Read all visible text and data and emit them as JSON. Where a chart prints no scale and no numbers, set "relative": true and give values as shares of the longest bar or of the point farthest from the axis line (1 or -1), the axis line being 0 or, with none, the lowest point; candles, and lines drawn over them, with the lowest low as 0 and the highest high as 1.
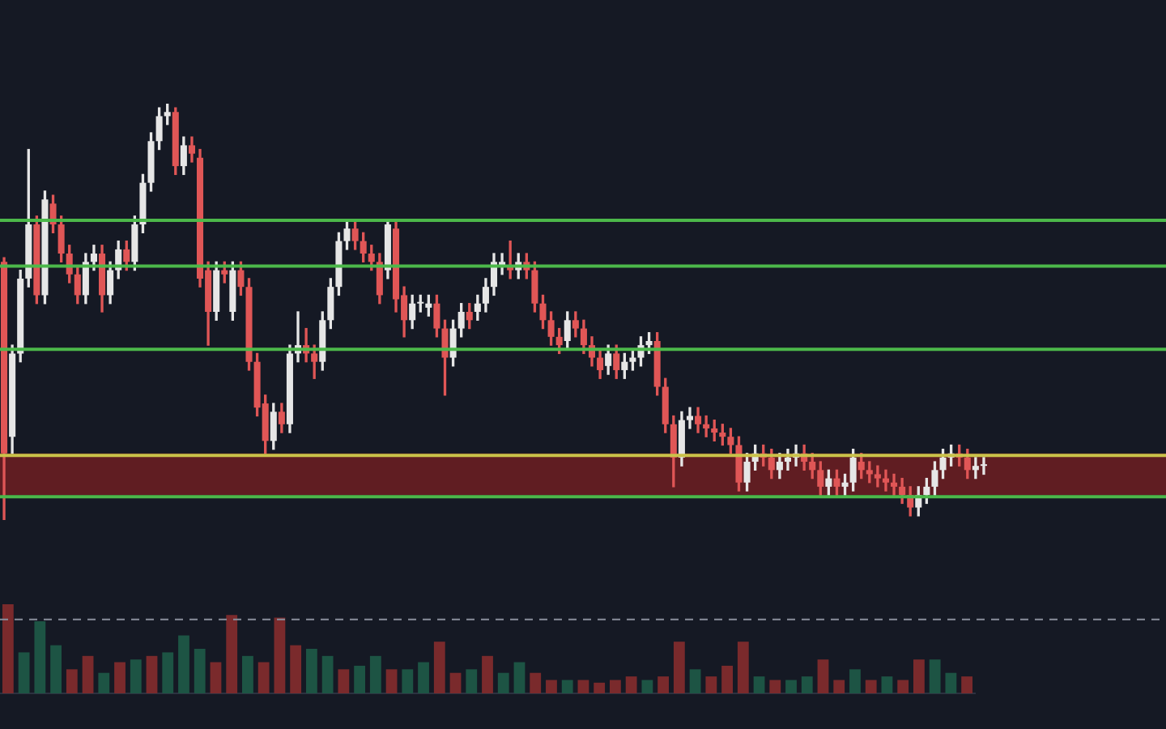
{
  "chart_data": [
    {
      "type": "candlestick",
      "relative": true,
      "categories": [
        null,
        null,
        null,
        null,
        null,
        null,
        null,
        null,
        null,
        null,
        null,
        null,
        null,
        null,
        null,
        null,
        null,
        null,
        null,
        null,
        null,
        null,
        null,
        null,
        null,
        null,
        null,
        null,
        null,
        null,
        null,
        null,
        null,
        null,
        null,
        null,
        null,
        null,
        null,
        null,
        null,
        null,
        null,
        null,
        null,
        null,
        null,
        null,
        null,
        null,
        null,
        null,
        null,
        null,
        null,
        null,
        null,
        null,
        null,
        null,
        null,
        null,
        null,
        null,
        null,
        null,
        null,
        null,
        null,
        null,
        null,
        null,
        null,
        null,
        null,
        null,
        null,
        null,
        null,
        null,
        null,
        null,
        null,
        null,
        null,
        null,
        null,
        null,
        null,
        null,
        null,
        null,
        null,
        null,
        null,
        null,
        null,
        null,
        null,
        null,
        null,
        null,
        null,
        null,
        null,
        null,
        null,
        null,
        null,
        null,
        null,
        null,
        null,
        null,
        null,
        null,
        null,
        null,
        null,
        null,
        null
      ],
      "ohlc": [
        [
          0.62,
          0.63,
          0,
          0.16
        ],
        [
          0.2,
          0.42,
          0.16,
          0.4
        ],
        [
          0.4,
          0.6,
          0.38,
          0.58
        ],
        [
          0.58,
          0.89,
          0.56,
          0.71
        ],
        [
          0.71,
          0.73,
          0.52,
          0.54
        ],
        [
          0.54,
          0.79,
          0.52,
          0.77
        ],
        [
          0.76,
          0.78,
          0.69,
          0.71
        ],
        [
          0.71,
          0.73,
          0.62,
          0.64
        ],
        [
          0.64,
          0.66,
          0.57,
          0.59
        ],
        [
          0.59,
          0.61,
          0.52,
          0.54
        ],
        [
          0.54,
          0.64,
          0.52,
          0.62
        ],
        [
          0.62,
          0.66,
          0.6,
          0.64
        ],
        [
          0.64,
          0.66,
          0.5,
          0.54
        ],
        [
          0.54,
          0.62,
          0.52,
          0.6
        ],
        [
          0.6,
          0.67,
          0.58,
          0.65
        ],
        [
          0.65,
          0.67,
          0.6,
          0.62
        ],
        [
          0.62,
          0.73,
          0.6,
          0.71
        ],
        [
          0.71,
          0.83,
          0.69,
          0.81
        ],
        [
          0.81,
          0.93,
          0.79,
          0.91
        ],
        [
          0.91,
          0.99,
          0.89,
          0.97
        ],
        [
          0.97,
          1,
          0.95,
          0.98
        ],
        [
          0.98,
          0.99,
          0.83,
          0.85
        ],
        [
          0.85,
          0.92,
          0.83,
          0.9
        ],
        [
          0.9,
          0.92,
          0.86,
          0.88
        ],
        [
          0.87,
          0.89,
          0.56,
          0.58
        ],
        [
          0.6,
          0.62,
          0.42,
          0.5
        ],
        [
          0.5,
          0.62,
          0.48,
          0.6
        ],
        [
          0.6,
          0.62,
          0.57,
          0.59
        ],
        [
          0.5,
          0.62,
          0.48,
          0.6
        ],
        [
          0.6,
          0.62,
          0.54,
          0.56
        ],
        [
          0.56,
          0.58,
          0.36,
          0.38
        ],
        [
          0.38,
          0.4,
          0.25,
          0.27
        ],
        [
          0.28,
          0.3,
          0.16,
          0.19
        ],
        [
          0.19,
          0.28,
          0.17,
          0.26
        ],
        [
          0.26,
          0.28,
          0.21,
          0.23
        ],
        [
          0.23,
          0.42,
          0.21,
          0.4
        ],
        [
          0.4,
          0.5,
          0.38,
          0.42
        ],
        [
          0.42,
          0.46,
          0.38,
          0.4
        ],
        [
          0.4,
          0.42,
          0.34,
          0.38
        ],
        [
          0.38,
          0.5,
          0.36,
          0.48
        ],
        [
          0.48,
          0.58,
          0.46,
          0.56
        ],
        [
          0.56,
          0.69,
          0.54,
          0.67
        ],
        [
          0.67,
          0.72,
          0.65,
          0.7
        ],
        [
          0.7,
          0.72,
          0.65,
          0.67
        ],
        [
          0.67,
          0.69,
          0.62,
          0.64
        ],
        [
          0.64,
          0.66,
          0.6,
          0.62
        ],
        [
          0.62,
          0.64,
          0.52,
          0.54
        ],
        [
          0.6,
          0.72,
          0.58,
          0.71
        ],
        [
          0.7,
          0.72,
          0.5,
          0.53
        ],
        [
          0.54,
          0.56,
          0.44,
          0.48
        ],
        [
          0.48,
          0.54,
          0.46,
          0.52
        ],
        [
          0.52,
          0.54,
          0.5,
          0.52
        ],
        [
          0.51,
          0.54,
          0.49,
          0.52
        ],
        [
          0.52,
          0.54,
          0.44,
          0.46
        ],
        [
          0.46,
          0.48,
          0.3,
          0.39
        ],
        [
          0.39,
          0.48,
          0.37,
          0.46
        ],
        [
          0.46,
          0.52,
          0.44,
          0.5
        ],
        [
          0.5,
          0.52,
          0.46,
          0.48
        ],
        [
          0.5,
          0.54,
          0.48,
          0.52
        ],
        [
          0.52,
          0.58,
          0.5,
          0.56
        ],
        [
          0.56,
          0.64,
          0.54,
          0.62
        ],
        [
          0.61,
          0.64,
          0.59,
          0.62
        ],
        [
          0.61,
          0.67,
          0.58,
          0.6
        ],
        [
          0.6,
          0.64,
          0.58,
          0.62
        ],
        [
          0.62,
          0.64,
          0.58,
          0.6
        ],
        [
          0.6,
          0.62,
          0.5,
          0.52
        ],
        [
          0.52,
          0.54,
          0.46,
          0.48
        ],
        [
          0.48,
          0.5,
          0.42,
          0.44
        ],
        [
          0.44,
          0.46,
          0.4,
          0.42
        ],
        [
          0.43,
          0.5,
          0.41,
          0.48
        ],
        [
          0.48,
          0.5,
          0.44,
          0.46
        ],
        [
          0.46,
          0.48,
          0.4,
          0.42
        ],
        [
          0.42,
          0.44,
          0.37,
          0.39
        ],
        [
          0.39,
          0.41,
          0.34,
          0.36
        ],
        [
          0.37,
          0.42,
          0.35,
          0.4
        ],
        [
          0.4,
          0.42,
          0.34,
          0.36
        ],
        [
          0.36,
          0.4,
          0.34,
          0.38
        ],
        [
          0.38,
          0.41,
          0.36,
          0.39
        ],
        [
          0.39,
          0.44,
          0.37,
          0.42
        ],
        [
          0.42,
          0.45,
          0.4,
          0.43
        ],
        [
          0.43,
          0.45,
          0.3,
          0.32
        ],
        [
          0.32,
          0.34,
          0.21,
          0.23
        ],
        [
          0.23,
          0.25,
          0.08,
          0.15
        ],
        [
          0.15,
          0.26,
          0.13,
          0.24
        ],
        [
          0.24,
          0.27,
          0.22,
          0.25
        ],
        [
          0.25,
          0.27,
          0.21,
          0.23
        ],
        [
          0.23,
          0.25,
          0.2,
          0.22
        ],
        [
          0.22,
          0.24,
          0.19,
          0.21
        ],
        [
          0.21,
          0.23,
          0.18,
          0.2
        ],
        [
          0.2,
          0.22,
          0.16,
          0.18
        ],
        [
          0.18,
          0.2,
          0.07,
          0.09
        ],
        [
          0.09,
          0.16,
          0.07,
          0.14
        ],
        [
          0.14,
          0.18,
          0.12,
          0.16
        ],
        [
          0.16,
          0.18,
          0.13,
          0.15
        ],
        [
          0.15,
          0.17,
          0.1,
          0.12
        ],
        [
          0.12,
          0.16,
          0.1,
          0.14
        ],
        [
          0.14,
          0.17,
          0.12,
          0.15
        ],
        [
          0.15,
          0.18,
          0.13,
          0.16
        ],
        [
          0.16,
          0.18,
          0.12,
          0.14
        ],
        [
          0.14,
          0.16,
          0.1,
          0.12
        ],
        [
          0.12,
          0.14,
          0.06,
          0.08
        ],
        [
          0.08,
          0.12,
          0.06,
          0.1
        ],
        [
          0.1,
          0.12,
          0.06,
          0.08
        ],
        [
          0.08,
          0.11,
          0.06,
          0.09
        ],
        [
          0.09,
          0.17,
          0.07,
          0.15
        ],
        [
          0.14,
          0.16,
          0.1,
          0.12
        ],
        [
          0.12,
          0.14,
          0.09,
          0.11
        ],
        [
          0.11,
          0.13,
          0.08,
          0.1
        ],
        [
          0.1,
          0.12,
          0.07,
          0.09
        ],
        [
          0.09,
          0.11,
          0.06,
          0.08
        ],
        [
          0.08,
          0.1,
          0.04,
          0.06
        ],
        [
          0.06,
          0.08,
          0.01,
          0.03
        ],
        [
          0.03,
          0.08,
          0.01,
          0.06
        ],
        [
          0.06,
          0.1,
          0.04,
          0.08
        ],
        [
          0.08,
          0.14,
          0.06,
          0.12
        ],
        [
          0.12,
          0.17,
          0.1,
          0.15
        ],
        [
          0.15,
          0.18,
          0.13,
          0.16
        ],
        [
          0.16,
          0.18,
          0.13,
          0.15
        ],
        [
          0.15,
          0.17,
          0.1,
          0.12
        ],
        [
          0.12,
          0.15,
          0.1,
          0.13
        ],
        [
          0.13,
          0.15,
          0.11,
          0.13
        ]
      ],
      "colors": [
        "#e05656",
        "#e6e6e6",
        "#e6e6e6",
        "#e6e6e6",
        "#e05656",
        "#e6e6e6",
        "#e05656",
        "#e05656",
        "#e05656",
        "#e05656",
        "#e6e6e6",
        "#e6e6e6",
        "#e05656",
        "#e6e6e6",
        "#e6e6e6",
        "#e05656",
        "#e6e6e6",
        "#e6e6e6",
        "#e6e6e6",
        "#e6e6e6",
        "#e6e6e6",
        "#e05656",
        "#e6e6e6",
        "#e05656",
        "#e05656",
        "#e05656",
        "#e6e6e6",
        "#e05656",
        "#e6e6e6",
        "#e05656",
        "#e05656",
        "#e05656",
        "#e05656",
        "#e6e6e6",
        "#e05656",
        "#e6e6e6",
        "#e6e6e6",
        "#e05656",
        "#e05656",
        "#e6e6e6",
        "#e6e6e6",
        "#e6e6e6",
        "#e6e6e6",
        "#e05656",
        "#e05656",
        "#e05656",
        "#e05656",
        "#e6e6e6",
        "#e05656",
        "#e05656",
        "#e6e6e6",
        "#e6e6e6",
        "#e6e6e6",
        "#e05656",
        "#e05656",
        "#e6e6e6",
        "#e6e6e6",
        "#e05656",
        "#e6e6e6",
        "#e6e6e6",
        "#e6e6e6",
        "#e6e6e6",
        "#e05656",
        "#e6e6e6",
        "#e05656",
        "#e05656",
        "#e05656",
        "#e05656",
        "#e05656",
        "#e6e6e6",
        "#e05656",
        "#e05656",
        "#e05656",
        "#e05656",
        "#e6e6e6",
        "#e05656",
        "#e6e6e6",
        "#e6e6e6",
        "#e6e6e6",
        "#e6e6e6",
        "#e05656",
        "#e05656",
        "#e05656",
        "#e6e6e6",
        "#e6e6e6",
        "#e05656",
        "#e05656",
        "#e05656",
        "#e05656",
        "#e05656",
        "#e05656",
        "#e6e6e6",
        "#e6e6e6",
        "#e05656",
        "#e05656",
        "#e6e6e6",
        "#e6e6e6",
        "#e6e6e6",
        "#e05656",
        "#e05656",
        "#e05656",
        "#e6e6e6",
        "#e05656",
        "#e6e6e6",
        "#e6e6e6",
        "#e05656",
        "#e05656",
        "#e05656",
        "#e05656",
        "#e05656",
        "#e05656",
        "#e05656",
        "#e6e6e6",
        "#e6e6e6",
        "#e6e6e6",
        "#e6e6e6",
        "#e6e6e6",
        "#e05656",
        "#e05656",
        "#e6e6e6",
        "#e6e6e6"
      ],
      "bands": [
        {
          "axis": "y",
          "from": 0.06,
          "to": 0.16,
          "color": "#7a1f22"
        }
      ],
      "ref_lines": [
        {
          "axis": "y",
          "value": 0.72,
          "color": "#4cb84a"
        },
        {
          "axis": "y",
          "value": 0.61,
          "color": "#4cb84a"
        },
        {
          "axis": "y",
          "value": 0.41,
          "color": "#4cb84a"
        },
        {
          "axis": "y",
          "value": 0.155,
          "color": "#c9c24a"
        },
        {
          "axis": "y",
          "value": 0.056,
          "color": "#4cb84a"
        }
      ]
    },
    {
      "type": "bar",
      "relative": true,
      "categories": [
        null,
        null,
        null,
        null,
        null,
        null,
        null,
        null,
        null,
        null,
        null,
        null,
        null,
        null,
        null,
        null,
        null,
        null,
        null,
        null,
        null,
        null,
        null,
        null,
        null,
        null,
        null,
        null,
        null,
        null,
        null,
        null,
        null,
        null,
        null,
        null,
        null,
        null,
        null,
        null,
        null,
        null,
        null,
        null,
        null,
        null,
        null,
        null,
        null,
        null,
        null,
        null,
        null,
        null,
        null,
        null,
        null,
        null,
        null,
        null,
        null
      ],
      "values": [
        1,
        0.46,
        0.81,
        0.54,
        0.27,
        0.42,
        0.23,
        0.35,
        0.38,
        0.42,
        0.46,
        0.65,
        0.5,
        0.35,
        0.88,
        0.42,
        0.35,
        0.85,
        0.54,
        0.5,
        0.42,
        0.27,
        0.31,
        0.42,
        0.27,
        0.27,
        0.35,
        0.58,
        0.23,
        0.27,
        0.42,
        0.23,
        0.35,
        0.23,
        0.15,
        0.15,
        0.15,
        0.12,
        0.15,
        0.19,
        0.15,
        0.19,
        0.58,
        0.27,
        0.19,
        0.31,
        0.58,
        0.19,
        0.15,
        0.15,
        0.19,
        0.38,
        0.15,
        0.27,
        0.15,
        0.19,
        0.15,
        0.38,
        0.38,
        0.23,
        0.19
      ],
      "colors": [
        "#7a2a2c",
        "#1d5444",
        "#1d5444",
        "#1d5444",
        "#7a2a2c",
        "#7a2a2c",
        "#1d5444",
        "#7a2a2c",
        "#1d5444",
        "#7a2a2c",
        "#1d5444",
        "#1d5444",
        "#1d5444",
        "#7a2a2c",
        "#7a2a2c",
        "#1d5444",
        "#7a2a2c",
        "#7a2a2c",
        "#7a2a2c",
        "#1d5444",
        "#1d5444",
        "#7a2a2c",
        "#1d5444",
        "#1d5444",
        "#7a2a2c",
        "#1d5444",
        "#1d5444",
        "#7a2a2c",
        "#7a2a2c",
        "#1d5444",
        "#7a2a2c",
        "#1d5444",
        "#1d5444",
        "#7a2a2c",
        "#7a2a2c",
        "#1d5444",
        "#7a2a2c",
        "#7a2a2c",
        "#7a2a2c",
        "#7a2a2c",
        "#1d5444",
        "#7a2a2c",
        "#7a2a2c",
        "#1d5444",
        "#7a2a2c",
        "#7a2a2c",
        "#7a2a2c",
        "#1d5444",
        "#7a2a2c",
        "#1d5444",
        "#1d5444",
        "#7a2a2c",
        "#7a2a2c",
        "#1d5444",
        "#7a2a2c",
        "#1d5444",
        "#7a2a2c",
        "#7a2a2c",
        "#1d5444",
        "#1d5444",
        "#7a2a2c"
      ],
      "ref_lines": [
        {
          "axis": "y",
          "value": 0.83,
          "color": "#8a8f9c",
          "line_style": "dashed"
        }
      ]
    }
  ]
}
